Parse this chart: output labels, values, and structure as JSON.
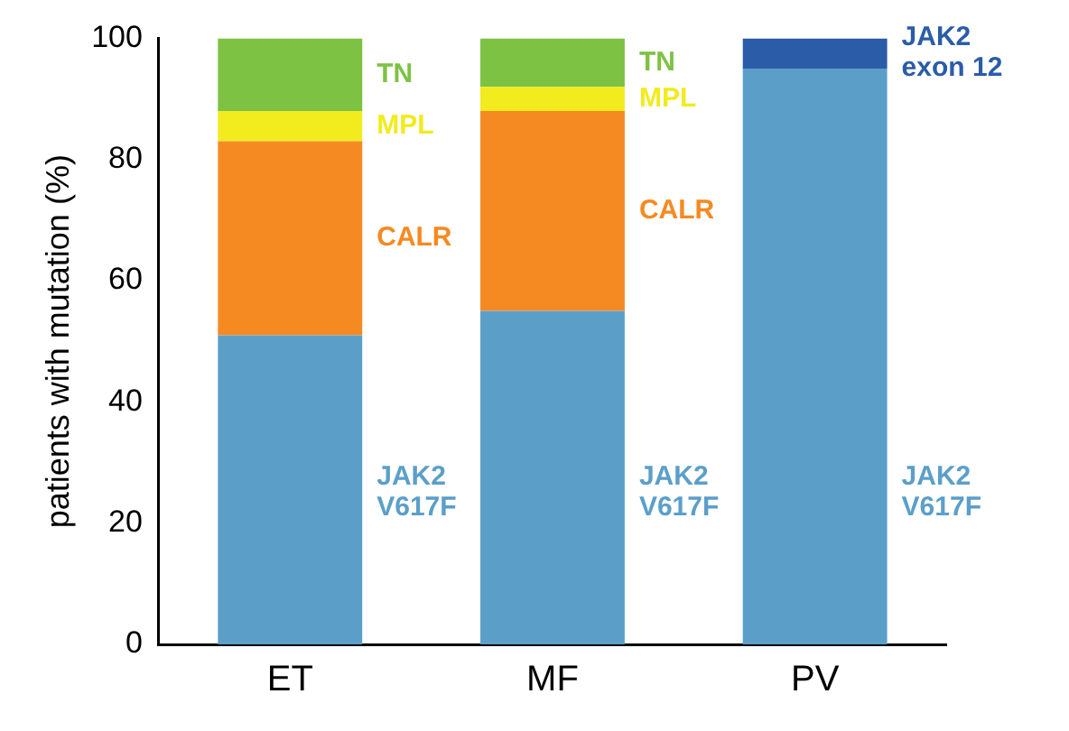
{
  "chart_data": {
    "type": "bar",
    "stacked": true,
    "ylabel": "patients with mutation (%)",
    "categories": [
      "ET",
      "MF",
      "PV"
    ],
    "ylim": [
      0,
      100
    ],
    "yticks": [
      0,
      20,
      40,
      60,
      80,
      100
    ],
    "grid": false,
    "legend": false,
    "series": [
      {
        "name": "JAK2 V617F",
        "color": "#5b9fc9",
        "values": [
          51,
          55,
          95
        ]
      },
      {
        "name": "CALR",
        "color": "#f58a22",
        "values": [
          32,
          33,
          null
        ]
      },
      {
        "name": "MPL",
        "color": "#f2eb1e",
        "values": [
          5,
          4,
          null
        ]
      },
      {
        "name": "TN",
        "color": "#7dc242",
        "values": [
          12,
          8,
          null
        ]
      },
      {
        "name": "JAK2 exon 12",
        "color": "#2a5ca8",
        "values": [
          null,
          null,
          5
        ]
      }
    ]
  }
}
